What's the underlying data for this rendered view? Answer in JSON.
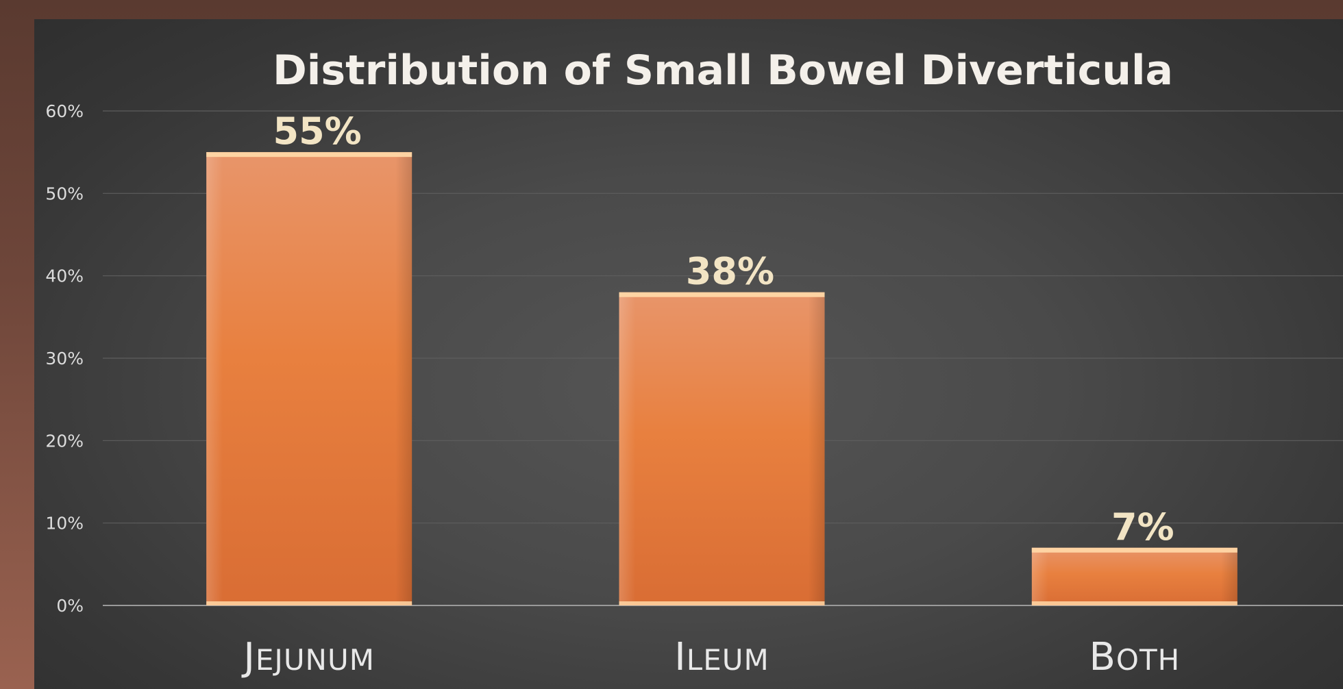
{
  "chart_data": {
    "type": "bar",
    "title": "Distribution of Small Bowel Diverticula",
    "categories": [
      "Jejunum",
      "Ileum",
      "Both"
    ],
    "values": [
      55,
      38,
      7
    ],
    "data_labels": [
      "55%",
      "38%",
      "7%"
    ],
    "xlabel": "",
    "ylabel": "",
    "ylim": [
      0,
      60
    ],
    "yticks": [
      "0%",
      "10%",
      "20%",
      "30%",
      "40%",
      "50%",
      "60%"
    ],
    "grid": true,
    "legend": "none"
  },
  "colors": {
    "bar_top": "#e8956a",
    "bar_mid": "#e8803f",
    "bar_bottom": "#d96d34",
    "bar_cap": "#ffd7a6",
    "data_label": "#f2e4c4",
    "gridline": "#5e5e5e",
    "axis_line": "#9a9a9a"
  }
}
